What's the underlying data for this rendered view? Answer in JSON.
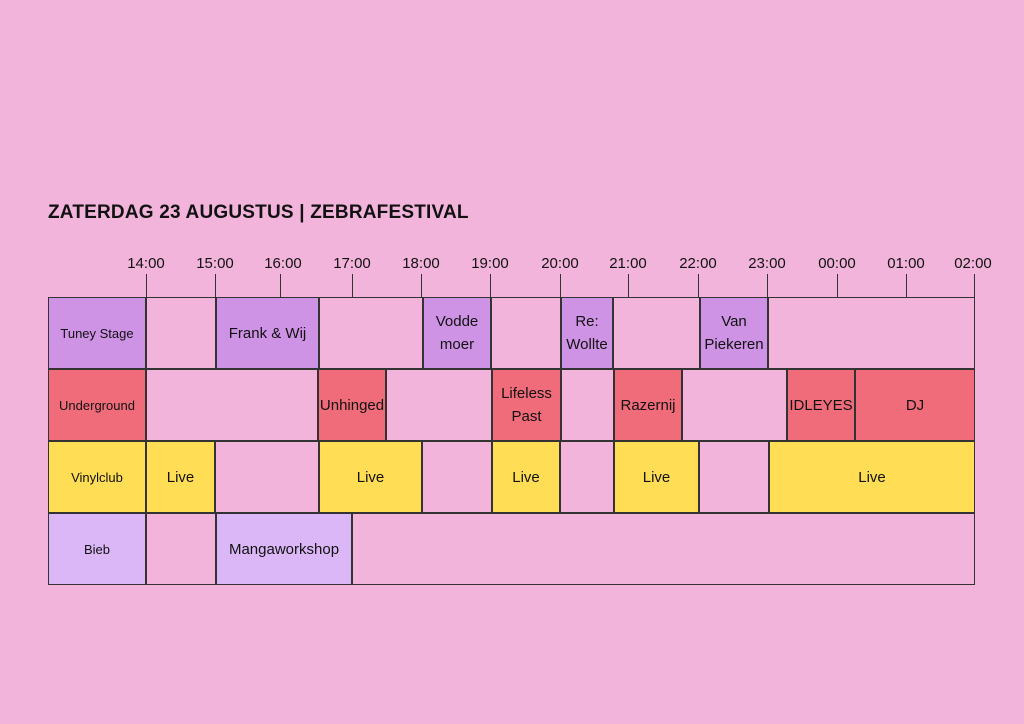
{
  "title": "ZATERDAG 23 AUGUSTUS | ZEBRAFESTIVAL",
  "times": [
    "14:00",
    "15:00",
    "16:00",
    "17:00",
    "18:00",
    "19:00",
    "20:00",
    "21:00",
    "22:00",
    "23:00",
    "00:00",
    "01:00",
    "02:00"
  ],
  "stages": [
    "Tuney Stage",
    "Underground",
    "Vinylclub",
    "Bieb"
  ],
  "acts": {
    "tuney": [
      "Frank & Wij",
      "Vodde\nmoer",
      "Re:\nWollte",
      "Van\nPiekeren"
    ],
    "underground": [
      "Unhinged",
      "Lifeless\nPast",
      "Razernij",
      "IDLEYES",
      "DJ"
    ],
    "vinyl": [
      "Live",
      "Live",
      "Live",
      "Live",
      "Live"
    ],
    "bieb": [
      "Mangaworkshop"
    ]
  },
  "colors": {
    "background": "#f3b4dc",
    "tuney": "#cf93e6",
    "underground": "#f06c7b",
    "vinyl": "#ffdd55",
    "bieb": "#dbb7f7"
  }
}
